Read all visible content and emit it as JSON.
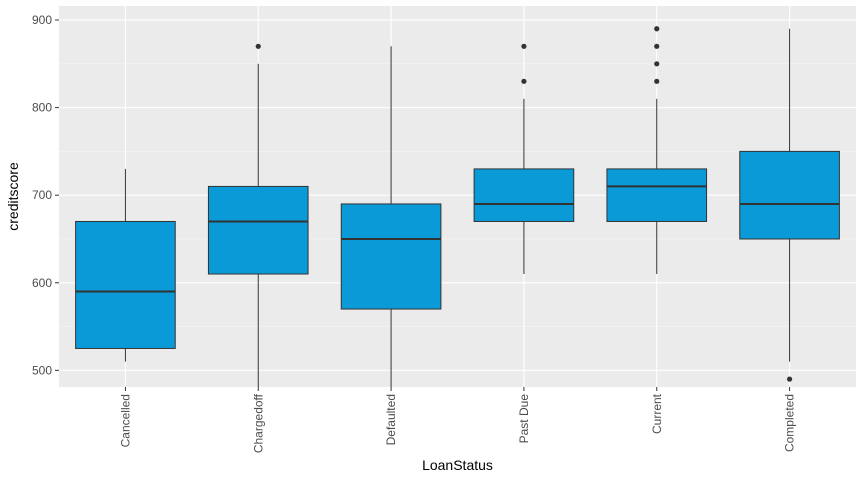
{
  "chart_data": {
    "type": "boxplot",
    "xlabel": "LoanStatus",
    "ylabel": "creditscore",
    "ylim": [
      481,
      916
    ],
    "y_ticks": [
      500,
      600,
      700,
      800,
      900
    ],
    "fill_color": "#0a9ad8",
    "panel_background": "#ebebeb",
    "grid": true,
    "x_tick_rotation": "vertical",
    "categories": [
      "Cancelled",
      "Chargedoff",
      "Defaulted",
      "Past Due",
      "Current",
      "Completed"
    ],
    "boxes": [
      {
        "category": "Cancelled",
        "whisker_low": 510,
        "q1": 525,
        "median": 590,
        "q3": 670,
        "whisker_high": 730,
        "outliers": []
      },
      {
        "category": "Chargedoff",
        "whisker_low": 481,
        "q1": 610,
        "median": 670,
        "q3": 710,
        "whisker_high": 850,
        "outliers": [
          870
        ]
      },
      {
        "category": "Defaulted",
        "whisker_low": 481,
        "q1": 570,
        "median": 650,
        "q3": 690,
        "whisker_high": 870,
        "outliers": []
      },
      {
        "category": "Past Due",
        "whisker_low": 610,
        "q1": 670,
        "median": 690,
        "q3": 730,
        "whisker_high": 810,
        "outliers": [
          830,
          870
        ]
      },
      {
        "category": "Current",
        "whisker_low": 610,
        "q1": 670,
        "median": 710,
        "q3": 730,
        "whisker_high": 810,
        "outliers": [
          830,
          850,
          870,
          890
        ]
      },
      {
        "category": "Completed",
        "whisker_low": 510,
        "q1": 650,
        "median": 690,
        "q3": 750,
        "whisker_high": 890,
        "outliers": [
          490
        ]
      }
    ]
  }
}
